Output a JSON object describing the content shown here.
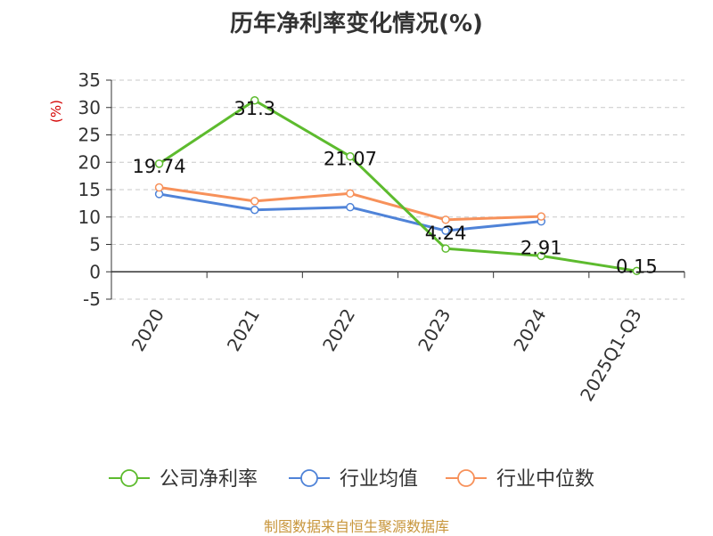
{
  "chart_data": {
    "type": "line",
    "title": "历年净利率变化情况(%)",
    "ylabel": "(%)",
    "xlabel": "",
    "categories": [
      "2020",
      "2021",
      "2022",
      "2023",
      "2024",
      "2025Q1-Q3"
    ],
    "ylim": [
      -5,
      35
    ],
    "yticks": [
      -5,
      0,
      5,
      10,
      15,
      20,
      25,
      30,
      35
    ],
    "grid": true,
    "legend_position": "bottom",
    "series": [
      {
        "name": "公司净利率",
        "color": "#5dbb2e",
        "values": [
          19.74,
          31.3,
          21.07,
          4.24,
          2.91,
          0.15
        ],
        "labels": [
          "19.74",
          "31.3",
          "21.07",
          "4.24",
          "2.91",
          "0.15"
        ]
      },
      {
        "name": "行业均值",
        "color": "#4f83d8",
        "values": [
          14.2,
          11.3,
          11.8,
          7.5,
          9.2,
          null
        ]
      },
      {
        "name": "行业中位数",
        "color": "#f7915a",
        "values": [
          15.4,
          12.9,
          14.3,
          9.5,
          10.1,
          null
        ]
      }
    ]
  },
  "source": "制图数据来自恒生聚源数据库"
}
